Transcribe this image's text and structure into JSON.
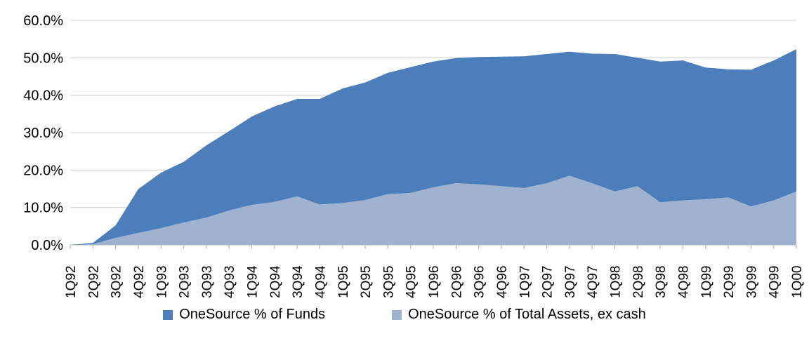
{
  "chart_data": {
    "type": "area",
    "title": "",
    "xlabel": "",
    "ylabel": "",
    "grid": true,
    "legend_position": "bottom",
    "overlap": "overlaid-not-stacked",
    "ylim": [
      0,
      60
    ],
    "ytick_step": 10,
    "ytick_labels": [
      "0.0%",
      "10.0%",
      "20.0%",
      "30.0%",
      "40.0%",
      "50.0%",
      "60.0%"
    ],
    "categories": [
      "1Q92",
      "2Q92",
      "3Q92",
      "4Q92",
      "1Q93",
      "2Q93",
      "3Q93",
      "4Q93",
      "1Q94",
      "2Q94",
      "3Q94",
      "4Q94",
      "1Q95",
      "2Q95",
      "3Q95",
      "4Q95",
      "1Q96",
      "2Q96",
      "3Q96",
      "4Q96",
      "1Q97",
      "2Q97",
      "3Q97",
      "4Q97",
      "1Q98",
      "2Q98",
      "3Q98",
      "4Q98",
      "1Q99",
      "2Q99",
      "3Q99",
      "4Q99",
      "1Q00"
    ],
    "series": [
      {
        "name": "OneSource % of Funds",
        "color": "#4b7ebb",
        "values": [
          0,
          0.5,
          5.2,
          14.9,
          19.3,
          22.2,
          26.6,
          30.4,
          34.3,
          37.0,
          39.0,
          39.0,
          41.8,
          43.4,
          46.0,
          47.5,
          49.0,
          49.9,
          50.2,
          50.3,
          50.4,
          51.0,
          51.6,
          51.1,
          51.0,
          50.0,
          49.0,
          49.3,
          47.4,
          46.9,
          46.8,
          49.3,
          52.3
        ]
      },
      {
        "name": "OneSource % of Total Assets, ex cash",
        "color": "#9fb3d1",
        "values": [
          0,
          0.2,
          1.9,
          3.2,
          4.5,
          6.0,
          7.3,
          9.2,
          10.7,
          11.5,
          13.0,
          10.8,
          11.2,
          12.0,
          13.6,
          13.9,
          15.4,
          16.5,
          16.2,
          15.7,
          15.2,
          16.5,
          18.5,
          16.5,
          14.3,
          15.7,
          11.4,
          11.9,
          12.2,
          12.7,
          10.3,
          11.9,
          14.3
        ]
      }
    ],
    "axis_colors": {
      "gridline": "#d9d9d9",
      "axis_line": "#bfbfbf",
      "tick": "#bfbfbf",
      "label": "#000000"
    }
  }
}
